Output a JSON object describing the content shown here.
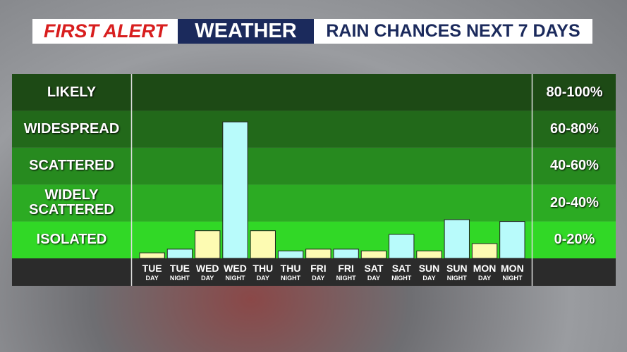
{
  "chart_data": {
    "type": "bar",
    "brand": "FIRST ALERT",
    "brand_word": "WEATHER",
    "title": "RAIN CHANCES NEXT 7 DAYS",
    "categories": [
      "TUE",
      "TUE",
      "WED",
      "WED",
      "THU",
      "THU",
      "FRI",
      "FRI",
      "SAT",
      "SAT",
      "SUN",
      "SUN",
      "MON",
      "MON"
    ],
    "category_sublabels": [
      "DAY",
      "NIGHT",
      "DAY",
      "NIGHT",
      "DAY",
      "NIGHT",
      "DAY",
      "NIGHT",
      "DAY",
      "NIGHT",
      "DAY",
      "NIGHT",
      "DAY",
      "NIGHT"
    ],
    "values": [
      3,
      5,
      15,
      74,
      15,
      4,
      5,
      5,
      4,
      13,
      4,
      21,
      8,
      20
    ],
    "colors": [
      "#fdfbb2",
      "#b8fbfb",
      "#fdfbb2",
      "#b8fbfb",
      "#fdfbb2",
      "#b8fbfb",
      "#fdfbb2",
      "#b8fbfb",
      "#fdfbb2",
      "#b8fbfb",
      "#fdfbb2",
      "#b8fbfb",
      "#fdfbb2",
      "#b8fbfb"
    ],
    "ylim": [
      0,
      100
    ],
    "bands": [
      {
        "label": "LIKELY",
        "range_label": "80-100%",
        "from": 80,
        "to": 100,
        "color": "#1d4a15"
      },
      {
        "label": "WIDESPREAD",
        "range_label": "60-80%",
        "from": 60,
        "to": 80,
        "color": "#22691a"
      },
      {
        "label": "SCATTERED",
        "range_label": "40-60%",
        "from": 40,
        "to": 60,
        "color": "#278a1f"
      },
      {
        "label": "WIDELY SCATTERED",
        "range_label": "20-40%",
        "from": 20,
        "to": 40,
        "color": "#2cab23"
      },
      {
        "label": "ISOLATED",
        "range_label": "0-20%",
        "from": 0,
        "to": 20,
        "color": "#31d826"
      }
    ]
  }
}
